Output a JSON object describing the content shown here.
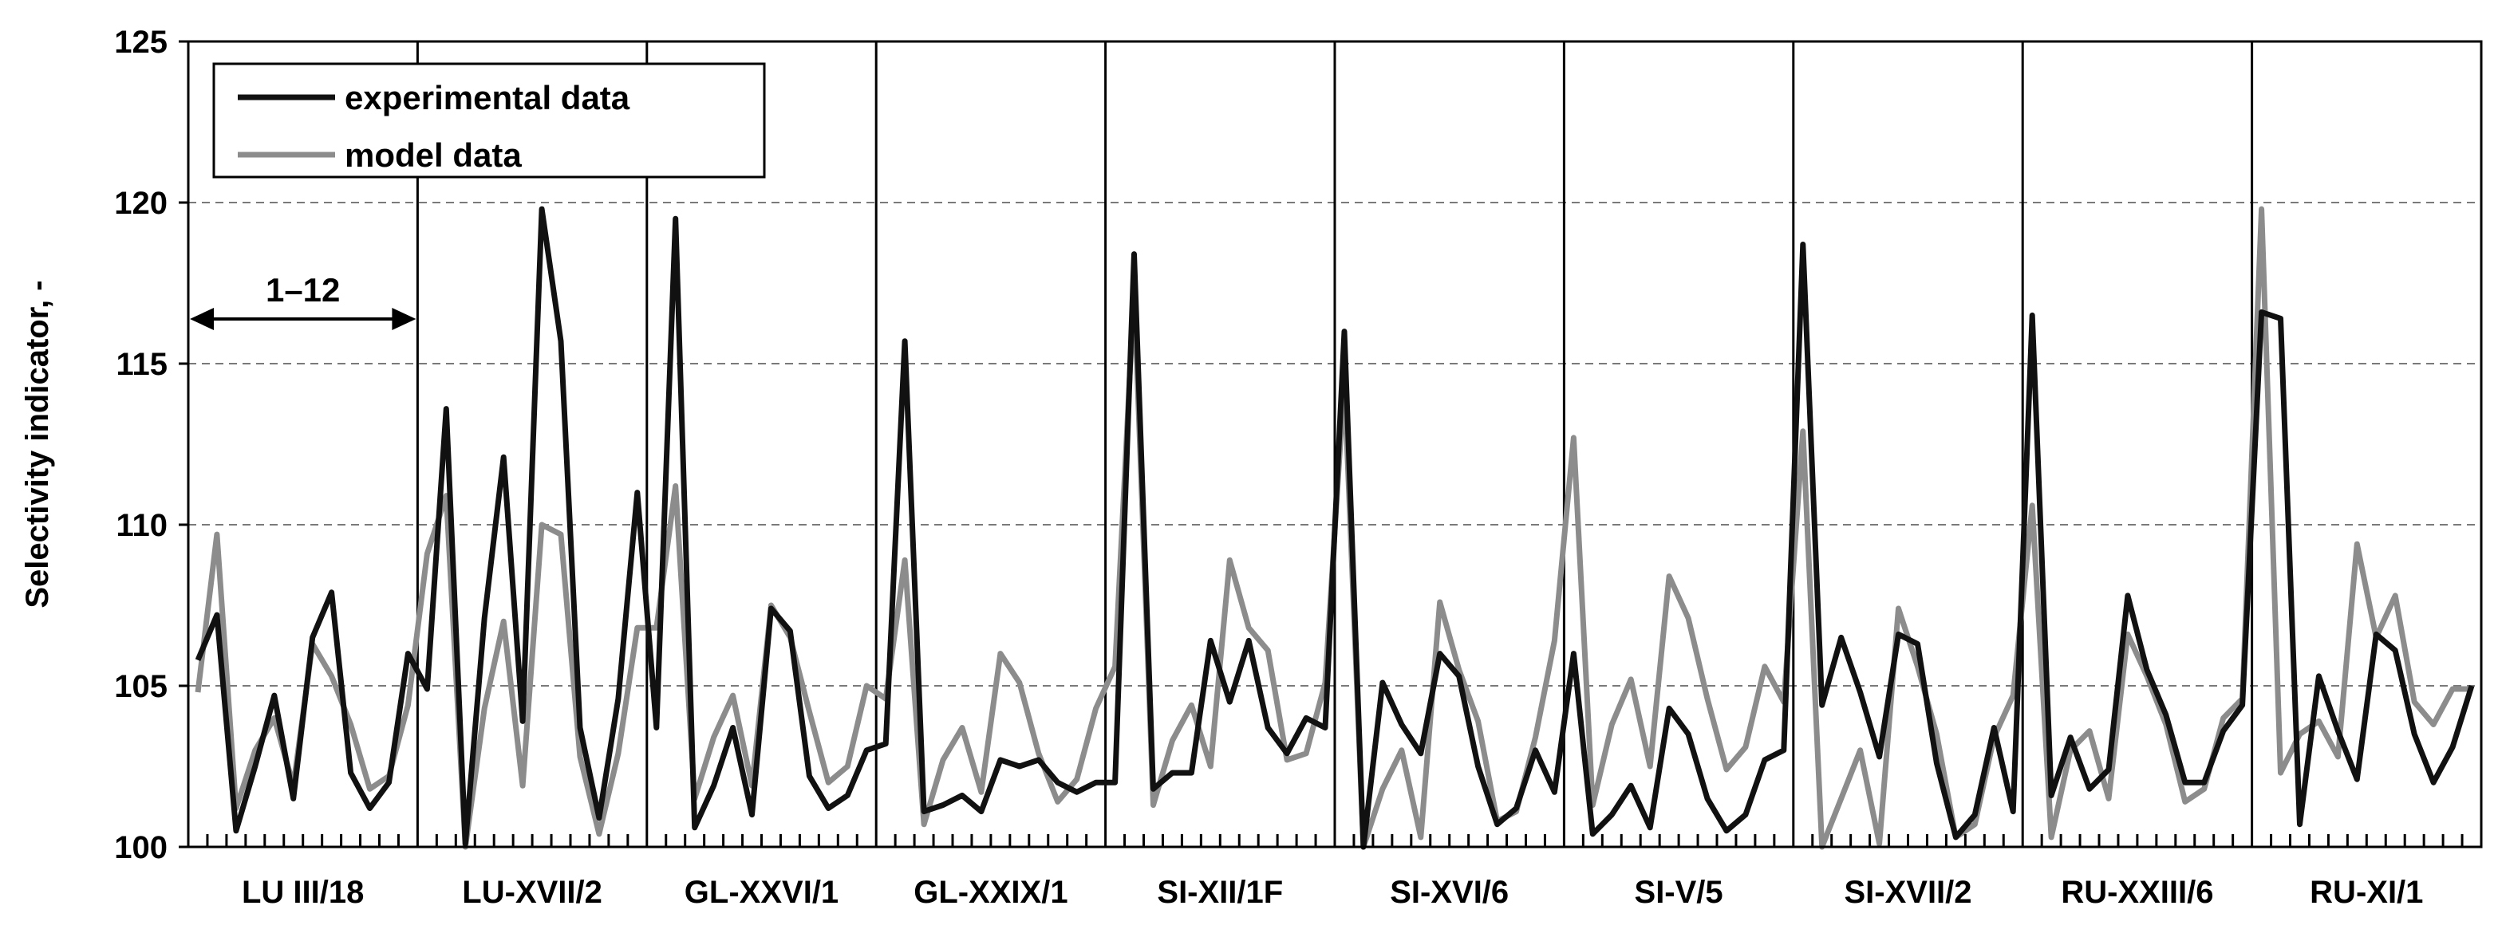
{
  "chart_data": {
    "type": "line",
    "title": "",
    "xlabel": "",
    "ylabel": "Selectivity indicator, -",
    "ylim": [
      100,
      125
    ],
    "yticks": [
      "100",
      "105",
      "110",
      "115",
      "120",
      "125"
    ],
    "grid": "horizontal dashed",
    "legend_position": "top-left",
    "group_size": 12,
    "group_annotation": "1–12",
    "groups": [
      "LU III/18",
      "LU-XVII/2",
      "GL-XXVI/1",
      "GL-XXIX/1",
      "SI-XII/1F",
      "SI-XVI/6",
      "SI-V/5",
      "SI-XVII/2",
      "RU-XXIII/6",
      "RU-XI/1"
    ],
    "series": [
      {
        "name": "experimental data",
        "color": "#111111",
        "values": [
          105.8,
          107.2,
          100.5,
          102.5,
          104.7,
          101.5,
          106.5,
          107.9,
          102.3,
          101.2,
          102.0,
          106.0,
          104.9,
          113.6,
          100.1,
          107.1,
          112.1,
          103.9,
          119.8,
          115.7,
          103.7,
          100.9,
          104.6,
          111.0,
          103.7,
          119.5,
          100.6,
          101.9,
          103.7,
          101.0,
          107.4,
          106.7,
          102.2,
          101.2,
          101.6,
          103.0,
          103.2,
          115.7,
          101.1,
          101.3,
          101.6,
          101.1,
          102.7,
          102.5,
          102.7,
          102.0,
          101.7,
          102.0,
          102.0,
          118.4,
          101.8,
          102.3,
          102.3,
          106.4,
          104.5,
          106.4,
          103.7,
          102.9,
          104.0,
          103.7,
          116.0,
          100.0,
          105.1,
          103.8,
          102.9,
          106.0,
          105.3,
          102.5,
          100.7,
          101.2,
          103.0,
          101.7,
          106.0,
          100.4,
          101.0,
          101.9,
          100.6,
          104.3,
          103.5,
          101.5,
          100.5,
          101.0,
          102.7,
          103.0,
          118.7,
          104.4,
          106.5,
          104.8,
          102.8,
          106.6,
          106.3,
          102.6,
          100.3,
          101.0,
          103.7,
          101.1,
          116.5,
          101.6,
          103.4,
          101.8,
          102.4,
          107.8,
          105.5,
          104.1,
          102.0,
          102.0,
          103.6,
          104.4,
          116.6,
          116.4,
          100.7,
          105.3,
          103.6,
          102.1,
          106.6,
          106.1,
          103.5,
          102.0,
          103.1,
          105.0
        ]
      },
      {
        "name": "model data",
        "color": "#8c8c8c",
        "values": [
          104.8,
          109.7,
          101.2,
          103.0,
          104.0,
          101.9,
          106.3,
          105.3,
          103.8,
          101.8,
          102.2,
          104.4,
          109.1,
          110.9,
          100.0,
          104.3,
          107.0,
          101.9,
          110.0,
          109.7,
          102.8,
          100.4,
          102.9,
          106.8,
          106.8,
          111.2,
          101.5,
          103.4,
          104.7,
          101.9,
          107.5,
          106.5,
          104.2,
          102.0,
          102.5,
          105.0,
          104.6,
          108.9,
          100.7,
          102.7,
          103.7,
          101.7,
          106.0,
          105.1,
          102.9,
          101.4,
          102.1,
          104.3,
          105.6,
          117.3,
          101.3,
          103.3,
          104.4,
          102.5,
          108.9,
          106.8,
          106.1,
          102.7,
          102.9,
          105.1,
          114.5,
          100.0,
          101.8,
          103.0,
          100.3,
          107.6,
          105.5,
          103.9,
          100.8,
          101.1,
          103.4,
          106.4,
          112.7,
          101.3,
          103.8,
          105.2,
          102.5,
          108.4,
          107.1,
          104.6,
          102.4,
          103.1,
          105.6,
          104.5,
          112.9,
          100.0,
          101.5,
          103.0,
          100.1,
          107.4,
          105.6,
          103.5,
          100.3,
          100.7,
          103.4,
          104.7,
          110.6,
          100.3,
          103.0,
          103.6,
          101.5,
          106.6,
          105.3,
          103.8,
          101.4,
          101.8,
          104.0,
          104.6,
          119.8,
          102.3,
          103.5,
          103.9,
          102.8,
          109.4,
          106.5,
          107.8,
          104.5,
          103.8,
          104.9,
          104.9
        ]
      }
    ]
  }
}
